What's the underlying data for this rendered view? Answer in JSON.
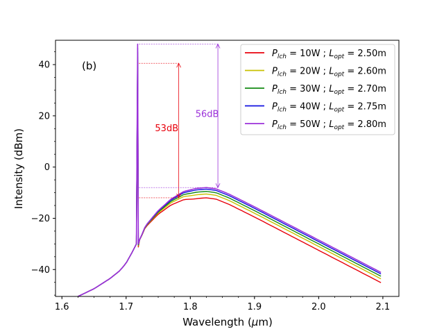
{
  "chart_data": {
    "type": "line",
    "panel_label": "(b)",
    "xlabel": "Wavelength (μm)",
    "ylabel": "Intensity (dBm)",
    "xlim": [
      1.59,
      2.125
    ],
    "ylim": [
      -50.5,
      49.5
    ],
    "xticks": [
      1.6,
      1.7,
      1.8,
      1.9,
      2.0,
      2.1
    ],
    "xtick_labels": [
      "1.6",
      "1.7",
      "1.8",
      "1.9",
      "2.0",
      "2.1"
    ],
    "yticks": [
      -40,
      -20,
      0,
      20,
      40
    ],
    "ytick_labels": [
      "−40",
      "−20",
      "0",
      "20",
      "40"
    ],
    "legend_position": "top-right",
    "base_x": [
      1.625,
      1.65,
      1.675,
      1.69,
      1.7,
      1.71,
      1.716,
      1.719,
      1.722,
      1.73,
      1.75,
      1.77,
      1.79,
      1.81,
      1.825,
      1.84,
      1.86,
      1.9,
      1.95,
      2.0,
      2.05,
      2.1
    ],
    "base_y": [
      -50.5,
      -47.5,
      -43.5,
      -40.5,
      -37.5,
      -33.0,
      -30.0,
      -29.0,
      -28.0,
      -23.0,
      -17.0,
      -12.5,
      -9.5,
      -8.3,
      -8.0,
      -8.5,
      -10.5,
      -15.5,
      -22.0,
      -28.5,
      -35.0,
      -41.5
    ],
    "pump_wavelength": 1.718,
    "series": [
      {
        "label_p": "P",
        "label_p_sub": "lch",
        "label_power": " = 10W ; ",
        "label_l": "L",
        "label_l_sub": "opt",
        "label_length": " = 2.50m",
        "color": "#e8000b",
        "offset": -4.0,
        "peak": 41,
        "highlight": "#ffffff"
      },
      {
        "label_p": "P",
        "label_p_sub": "lch",
        "label_power": " = 20W ; ",
        "label_l": "L",
        "label_l_sub": "opt",
        "label_length": " = 2.60m",
        "color": "#c8c000",
        "offset": -2.5,
        "peak": 43,
        "highlight": "#ffffff"
      },
      {
        "label_p": "P",
        "label_p_sub": "lch",
        "label_power": " = 30W ; ",
        "label_l": "L",
        "label_l_sub": "opt",
        "label_length": " = 2.70m",
        "color": "#138a13",
        "offset": -1.5,
        "peak": 45,
        "highlight": "#ffffff"
      },
      {
        "label_p": "P",
        "label_p_sub": "lch",
        "label_power": " = 40W ; ",
        "label_l": "L",
        "label_l_sub": "opt",
        "label_length": " = 2.75m",
        "color": "#1010e0",
        "offset": -0.6,
        "peak": 46.5,
        "highlight": "#ffffff"
      },
      {
        "label_p": "P",
        "label_p_sub": "lch",
        "label_power": " = 50W ; ",
        "label_l": "L",
        "label_l_sub": "opt",
        "label_length": " = 2.80m",
        "color": "#9b30d9",
        "offset": 0.0,
        "peak": 48,
        "highlight": "#9b30d9"
      }
    ],
    "annotations": [
      {
        "text": "53dB",
        "color": "#e8000b",
        "x": 1.782,
        "y_top": 40.5,
        "y_bottom": -12.0,
        "guide_x_start": 1.72,
        "label_x": 1.745,
        "label_y": 14.0
      },
      {
        "text": "56dB",
        "color": "#9b30d9",
        "x": 1.843,
        "y_top": 48.0,
        "y_bottom": -8.0,
        "guide_x_start": 1.72,
        "label_x": 1.808,
        "label_y": 19.5
      }
    ]
  }
}
